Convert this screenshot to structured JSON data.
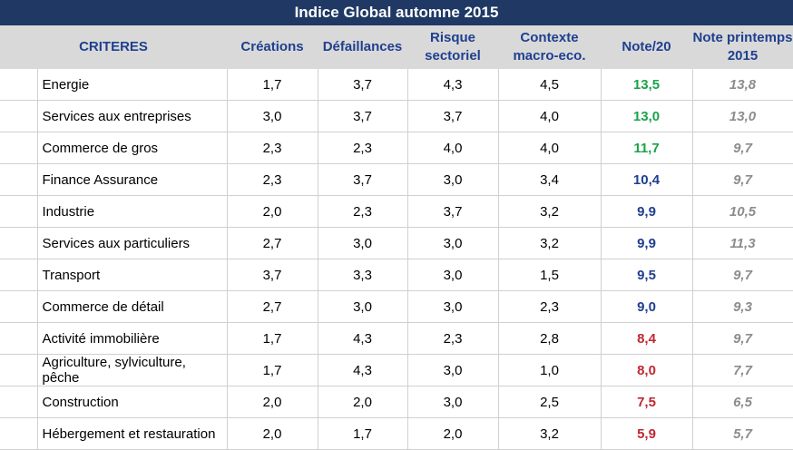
{
  "title": "Indice Global automne 2015",
  "headers": {
    "criteres": "CRITERES",
    "creations": "Créations",
    "defaillances": "Défaillances",
    "risque_line1": "Risque",
    "risque_line2": "sectoriel",
    "contexte_line1": "Contexte",
    "contexte_line2": "macro-eco.",
    "note": "Note/20",
    "printemps_line1": "Note printemps",
    "printemps_line2": "2015"
  },
  "colors": {
    "title_bg": "#1f3864",
    "header_bg": "#d9d9d9",
    "header_text": "#1f3f8f",
    "note_high": "#1aa34a",
    "note_mid": "#1f3f8f",
    "note_low": "#c0282f",
    "note_previous": "#8c8c8c"
  },
  "rows": [
    {
      "critere": "Energie",
      "creations": "1,7",
      "defaillances": "3,7",
      "risque": "4,3",
      "contexte": "4,5",
      "note": "13,5",
      "note_level": "high",
      "printemps": "13,8"
    },
    {
      "critere": "Services aux entreprises",
      "creations": "3,0",
      "defaillances": "3,7",
      "risque": "3,7",
      "contexte": "4,0",
      "note": "13,0",
      "note_level": "high",
      "printemps": "13,0"
    },
    {
      "critere": "Commerce de gros",
      "creations": "2,3",
      "defaillances": "2,3",
      "risque": "4,0",
      "contexte": "4,0",
      "note": "11,7",
      "note_level": "high",
      "printemps": "9,7"
    },
    {
      "critere": "Finance Assurance",
      "creations": "2,3",
      "defaillances": "3,7",
      "risque": "3,0",
      "contexte": "3,4",
      "note": "10,4",
      "note_level": "mid",
      "printemps": "9,7"
    },
    {
      "critere": "Industrie",
      "creations": "2,0",
      "defaillances": "2,3",
      "risque": "3,7",
      "contexte": "3,2",
      "note": "9,9",
      "note_level": "mid",
      "printemps": "10,5"
    },
    {
      "critere": "Services aux particuliers",
      "creations": "2,7",
      "defaillances": "3,0",
      "risque": "3,0",
      "contexte": "3,2",
      "note": "9,9",
      "note_level": "mid",
      "printemps": "11,3"
    },
    {
      "critere": "Transport",
      "creations": "3,7",
      "defaillances": "3,3",
      "risque": "3,0",
      "contexte": "1,5",
      "note": "9,5",
      "note_level": "mid",
      "printemps": "9,7"
    },
    {
      "critere": "Commerce de détail",
      "creations": "2,7",
      "defaillances": "3,0",
      "risque": "3,0",
      "contexte": "2,3",
      "note": "9,0",
      "note_level": "mid",
      "printemps": "9,3"
    },
    {
      "critere": "Activité immobilière",
      "creations": "1,7",
      "defaillances": "4,3",
      "risque": "2,3",
      "contexte": "2,8",
      "note": "8,4",
      "note_level": "low",
      "printemps": "9,7"
    },
    {
      "critere": "Agriculture, sylviculture, pêche",
      "creations": "1,7",
      "defaillances": "4,3",
      "risque": "3,0",
      "contexte": "1,0",
      "note": "8,0",
      "note_level": "low",
      "printemps": "7,7"
    },
    {
      "critere": "Construction",
      "creations": "2,0",
      "defaillances": "2,0",
      "risque": "3,0",
      "contexte": "2,5",
      "note": "7,5",
      "note_level": "low",
      "printemps": "6,5"
    },
    {
      "critere": "Hébergement et restauration",
      "creations": "2,0",
      "defaillances": "1,7",
      "risque": "2,0",
      "contexte": "3,2",
      "note": "5,9",
      "note_level": "low",
      "printemps": "5,7"
    }
  ]
}
